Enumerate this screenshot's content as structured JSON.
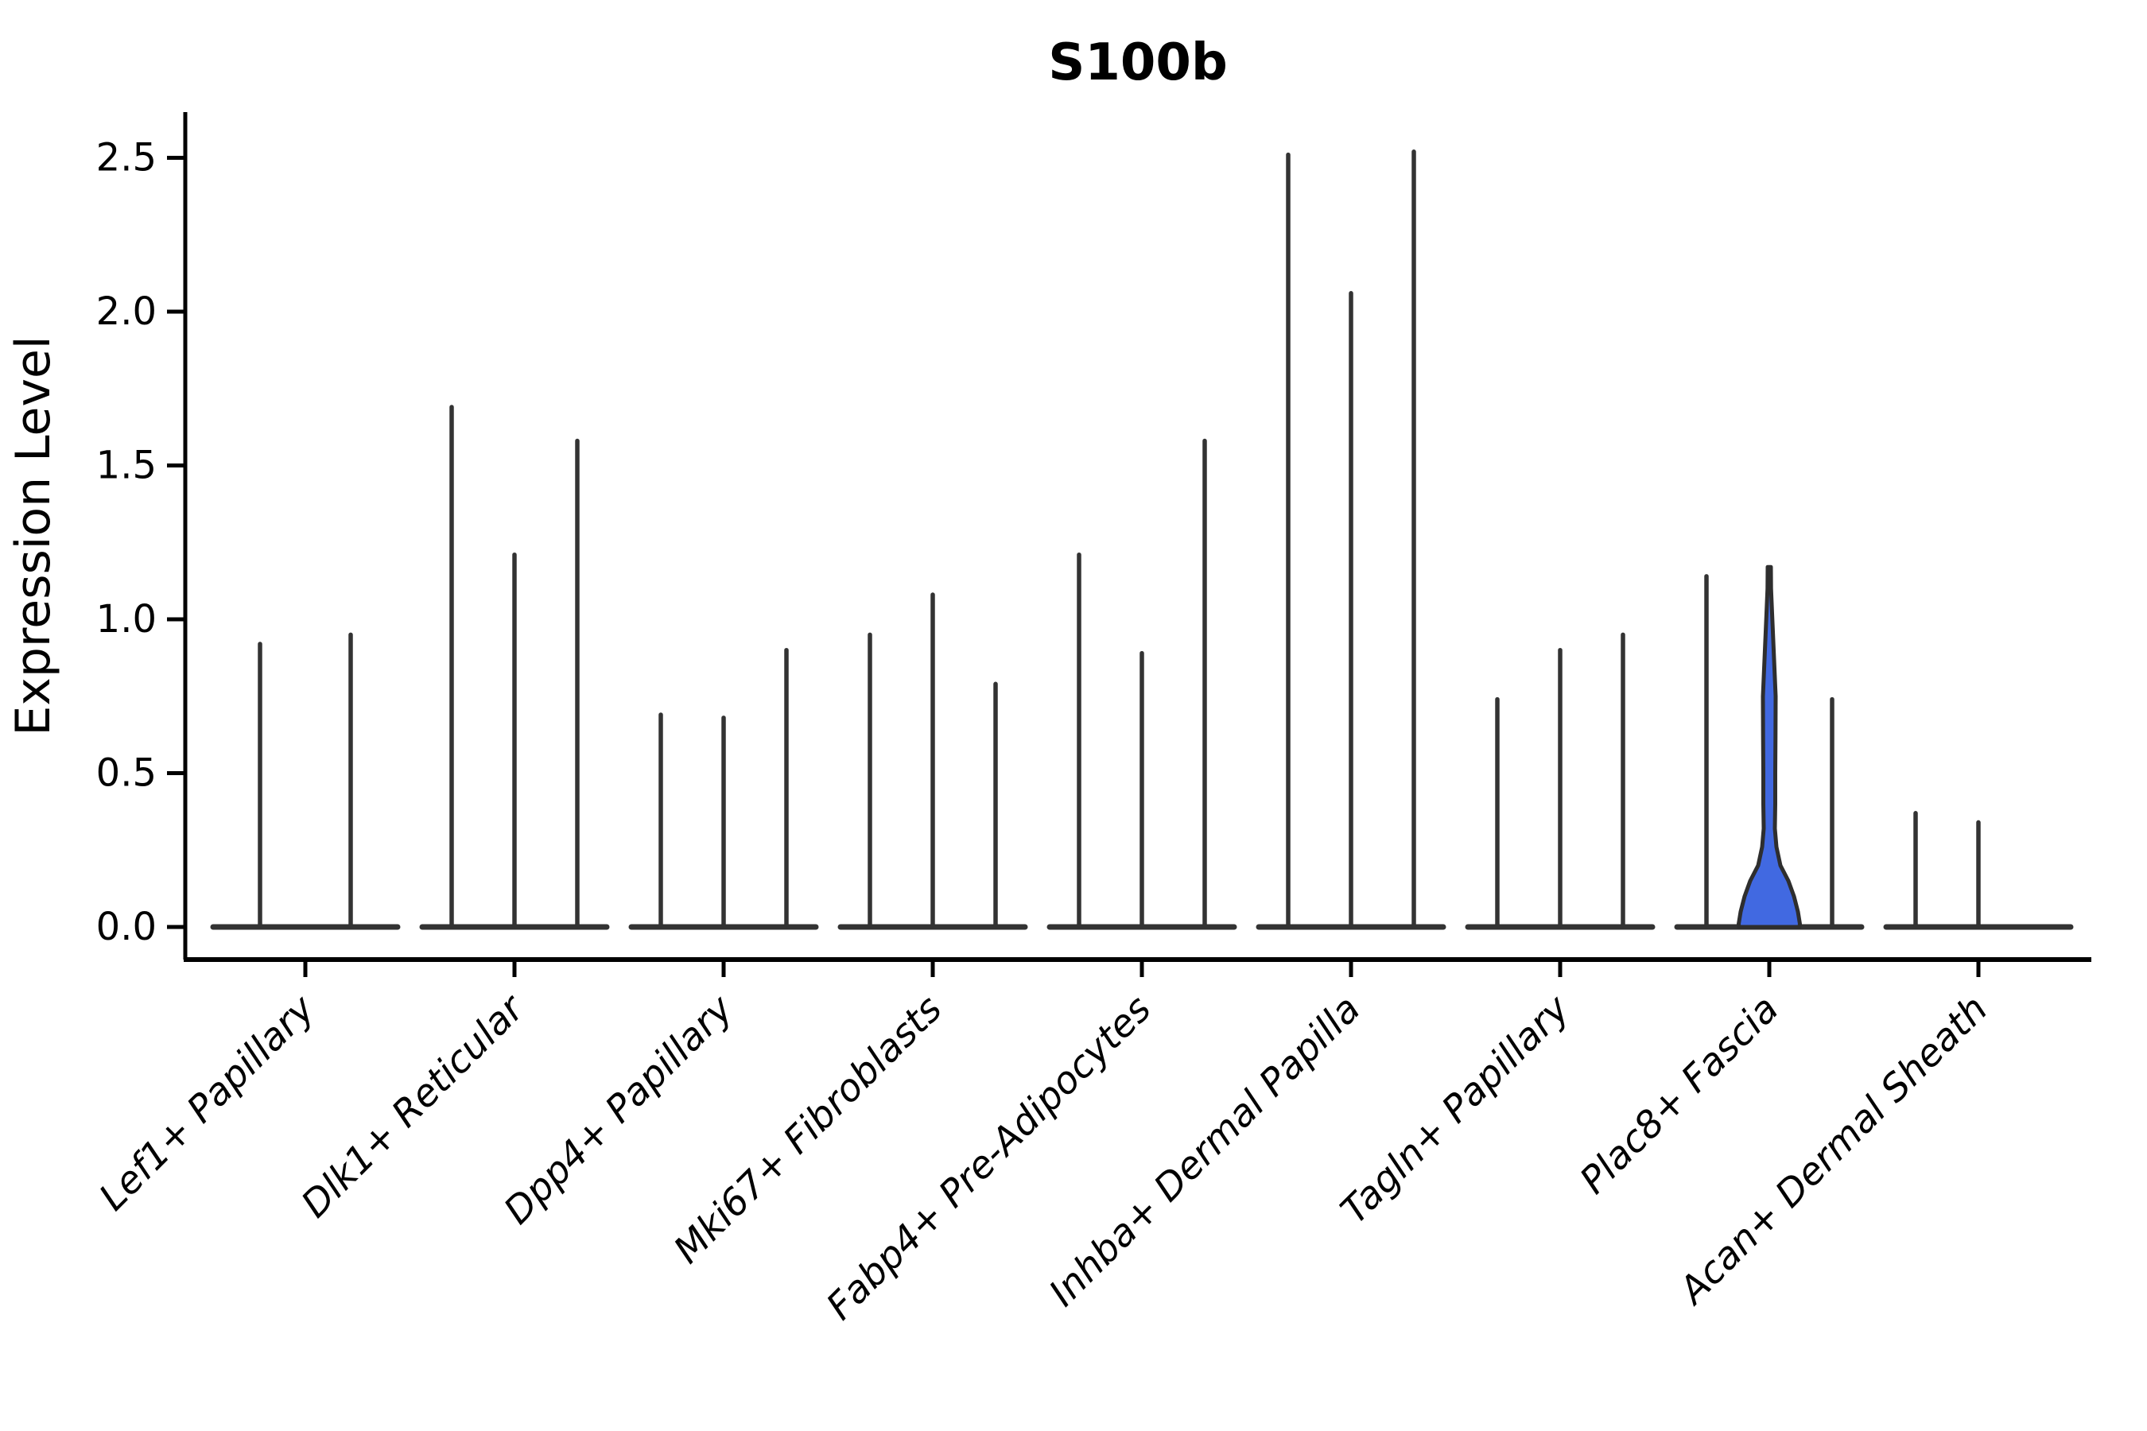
{
  "title": "S100b",
  "y_axis": {
    "label": "Expression Level",
    "ticks": [
      "0.0",
      "0.5",
      "1.0",
      "1.5",
      "2.0",
      "2.5"
    ],
    "tick_values": [
      0.0,
      0.5,
      1.0,
      1.5,
      2.0,
      2.5
    ]
  },
  "chart_data": {
    "type": "violin",
    "title": "S100b",
    "xlabel": "",
    "ylabel": "Expression Level",
    "ylim": [
      0,
      2.65
    ],
    "yticks": [
      0.0,
      0.5,
      1.0,
      1.5,
      2.0,
      2.5
    ],
    "ytick_labels": [
      "0.0",
      "0.5",
      "1.0",
      "1.5",
      "2.0",
      "2.5"
    ],
    "grid": false,
    "legend": "none",
    "categories": [
      "Lef1+ Papillary",
      "Dlk1+ Reticular",
      "Dpp4+ Papillary",
      "Mki67+ Fibroblasts",
      "Fabp4+ Pre-Adipocytes",
      "Inhba+ Dermal Papilla",
      "Tagln+ Papillary",
      "Plac8+ Fascia",
      "Acan+ Dermal Sheath"
    ],
    "groups": [
      {
        "category": "Lef1+ Papillary",
        "violin_max": [
          0.92,
          0.95
        ]
      },
      {
        "category": "Dlk1+ Reticular",
        "violin_max": [
          1.69,
          1.21,
          1.58
        ]
      },
      {
        "category": "Dpp4+ Papillary",
        "violin_max": [
          0.69,
          0.68,
          0.9
        ]
      },
      {
        "category": "Mki67+ Fibroblasts",
        "violin_max": [
          0.95,
          1.08,
          0.79
        ]
      },
      {
        "category": "Fabp4+ Pre-Adipocytes",
        "violin_max": [
          1.21,
          0.89,
          1.58
        ]
      },
      {
        "category": "Inhba+ Dermal Papilla",
        "violin_max": [
          2.51,
          2.06,
          2.52
        ]
      },
      {
        "category": "Tagln+ Papillary",
        "violin_max": [
          0.74,
          0.9,
          0.95
        ]
      },
      {
        "category": "Plac8+ Fascia",
        "violin_max": [
          1.14,
          1.17,
          0.74
        ],
        "highlighted_violin_index": 1
      },
      {
        "category": "Acan+ Dermal Sheath",
        "violin_max": [
          0.37,
          0.34,
          null
        ]
      }
    ],
    "highlight_profile": [
      [
        1.17,
        2.0
      ],
      [
        1.1,
        2.2
      ],
      [
        1.02,
        3.5
      ],
      [
        0.93,
        5.0
      ],
      [
        0.84,
        6.5
      ],
      [
        0.75,
        8.0
      ],
      [
        0.62,
        7.8
      ],
      [
        0.5,
        7.5
      ],
      [
        0.4,
        7.5
      ],
      [
        0.32,
        7.0
      ],
      [
        0.26,
        9.0
      ],
      [
        0.2,
        14.0
      ],
      [
        0.15,
        24.0
      ],
      [
        0.1,
        31.0
      ],
      [
        0.05,
        36.0
      ],
      [
        0.01,
        38.5
      ],
      [
        0.0,
        38.0
      ]
    ],
    "colors": {
      "violin_stroke": "#333333",
      "highlight_fill": "#4169E1",
      "highlight_stroke": "#2e2e2e",
      "axis": "#000000",
      "background": "#ffffff"
    }
  }
}
